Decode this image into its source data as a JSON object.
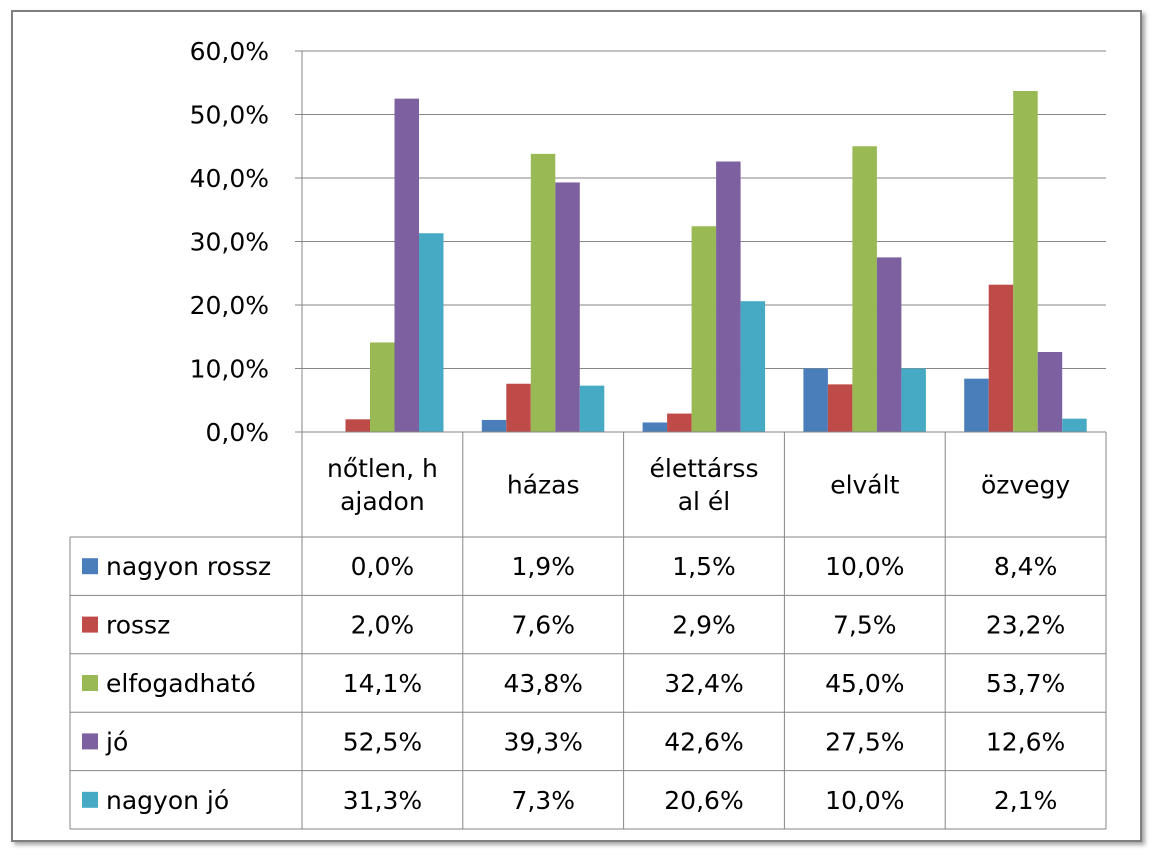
{
  "chart_data": {
    "type": "bar",
    "title": "",
    "xlabel": "",
    "ylabel": "",
    "ylim": [
      0,
      60
    ],
    "yticks": [
      0,
      10,
      20,
      30,
      40,
      50,
      60
    ],
    "ytick_labels": [
      "0,0%",
      "10,0%",
      "20,0%",
      "30,0%",
      "40,0%",
      "50,0%",
      "60,0%"
    ],
    "grid": true,
    "legend_placement": "data-table-left",
    "categories": [
      [
        "nőtlen, h",
        "ajadon"
      ],
      [
        "házas"
      ],
      [
        "élettárss",
        "al él"
      ],
      [
        "elvált"
      ],
      [
        "özvegy"
      ]
    ],
    "series": [
      {
        "name": "nagyon rossz",
        "color": "#4a7ebb",
        "values": [
          0.0,
          1.9,
          1.5,
          10.0,
          8.4
        ],
        "labels": [
          "0,0%",
          "1,9%",
          "1,5%",
          "10,0%",
          "8,4%"
        ]
      },
      {
        "name": "rossz",
        "color": "#be4b48",
        "values": [
          2.0,
          7.6,
          2.9,
          7.5,
          23.2
        ],
        "labels": [
          "2,0%",
          "7,6%",
          "2,9%",
          "7,5%",
          "23,2%"
        ]
      },
      {
        "name": "elfogadható",
        "color": "#98b954",
        "values": [
          14.1,
          43.8,
          32.4,
          45.0,
          53.7
        ],
        "labels": [
          "14,1%",
          "43,8%",
          "32,4%",
          "45,0%",
          "53,7%"
        ]
      },
      {
        "name": "jó",
        "color": "#7d60a0",
        "values": [
          52.5,
          39.3,
          42.6,
          27.5,
          12.6
        ],
        "labels": [
          "52,5%",
          "39,3%",
          "42,6%",
          "27,5%",
          "12,6%"
        ]
      },
      {
        "name": "nagyon jó",
        "color": "#46aac5",
        "values": [
          31.3,
          7.3,
          20.6,
          10.0,
          2.1
        ],
        "labels": [
          "31,3%",
          "7,3%",
          "20,6%",
          "10,0%",
          "2,1%"
        ]
      }
    ]
  }
}
